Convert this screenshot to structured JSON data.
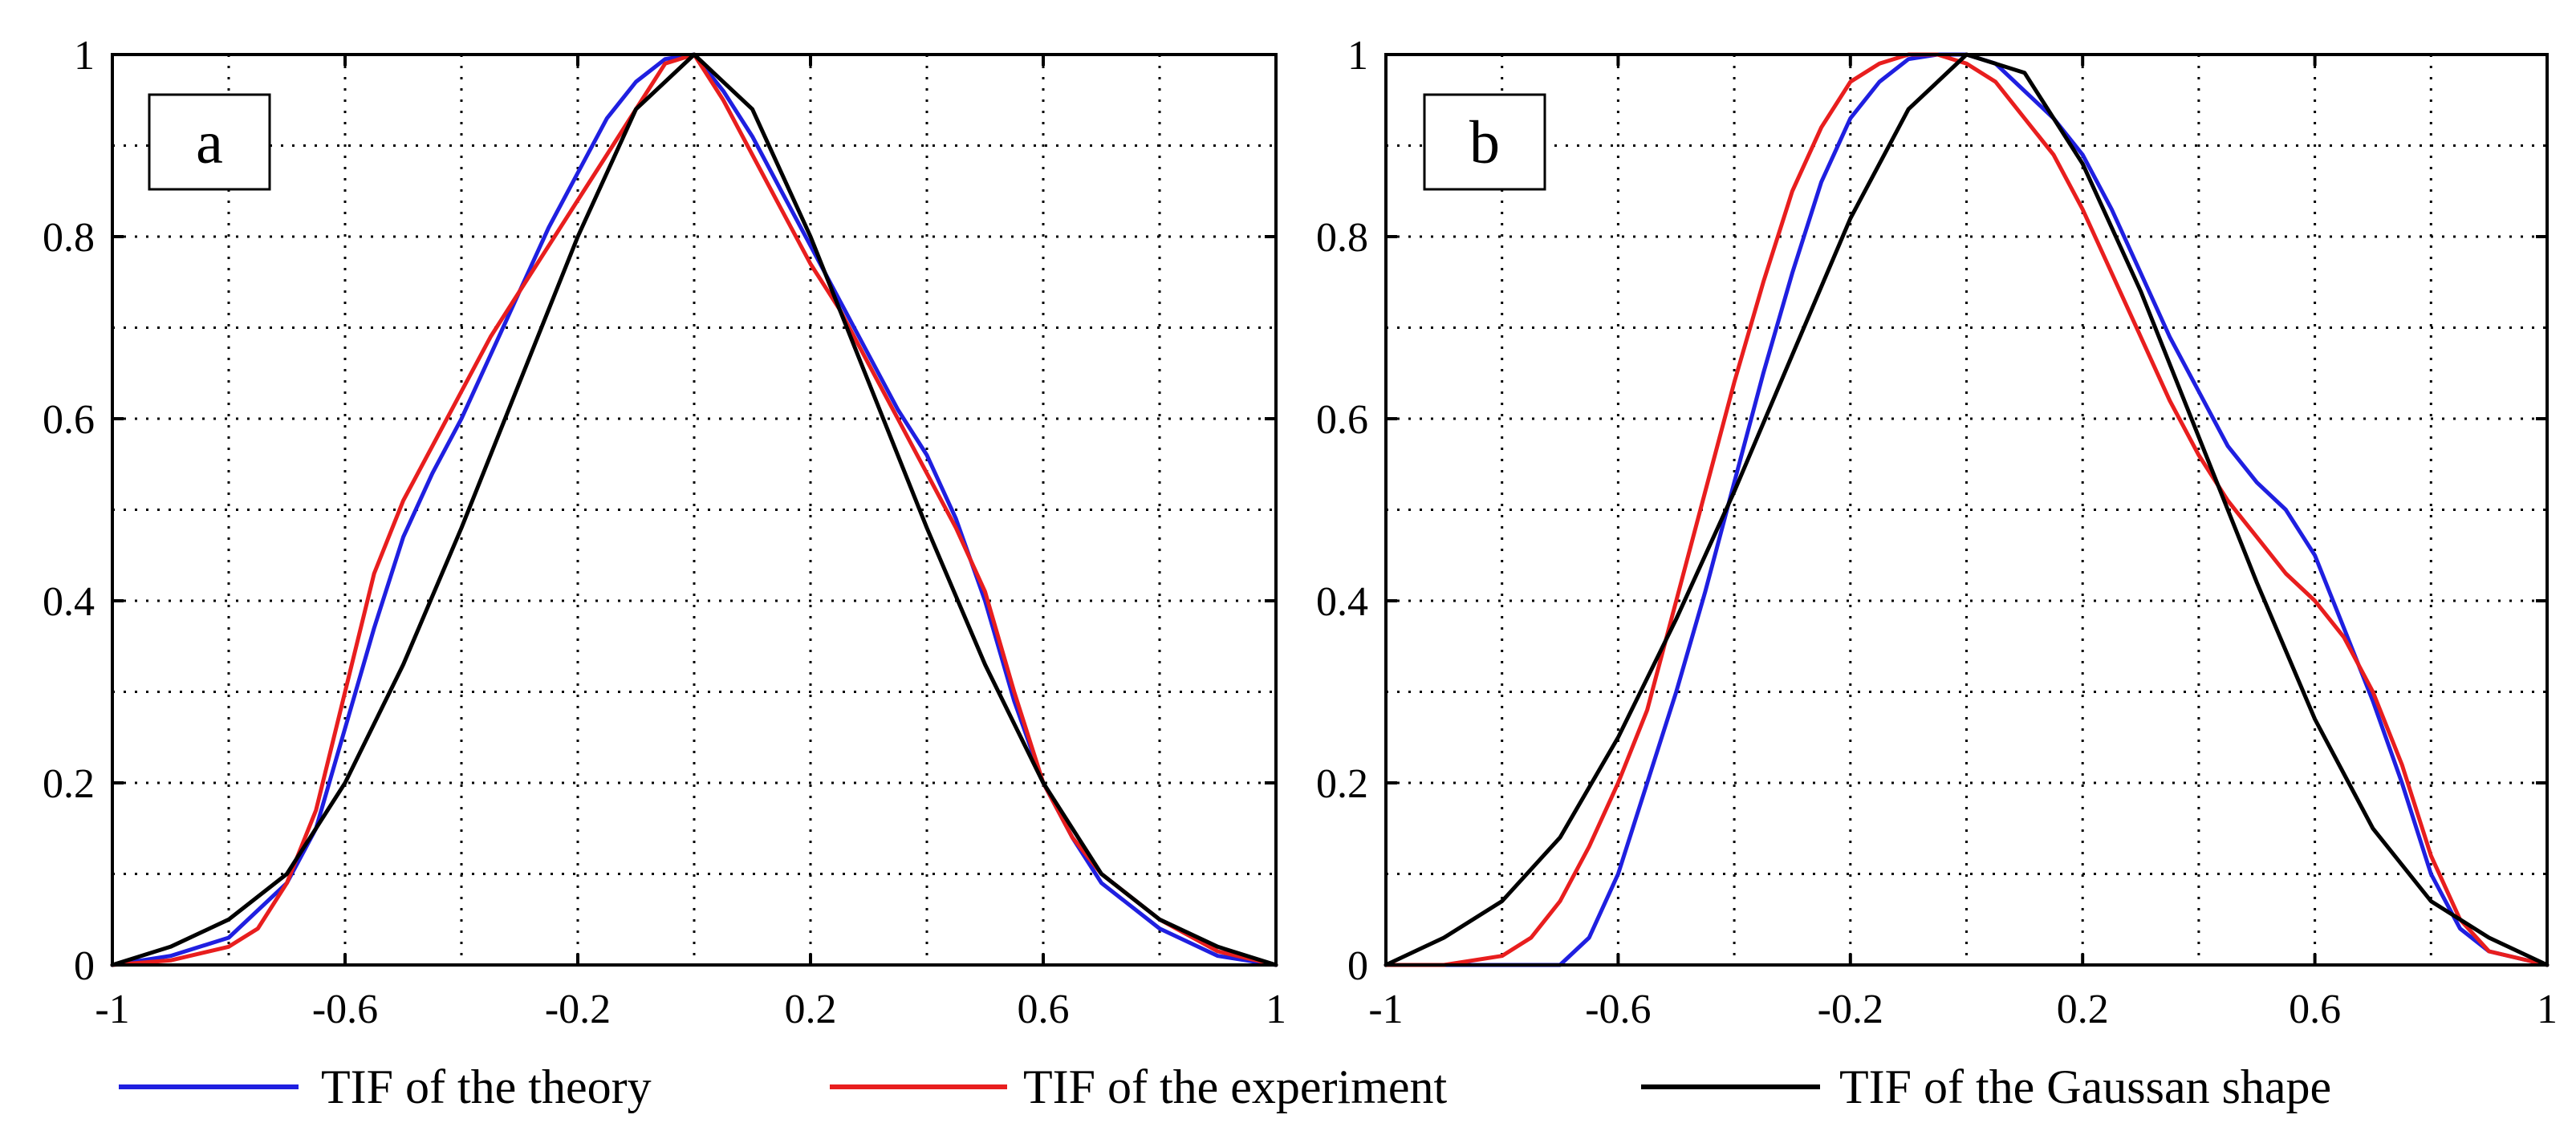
{
  "chart_data": [
    {
      "panel": "a",
      "type": "line",
      "xlim": [
        -1,
        1
      ],
      "ylim": [
        0,
        1
      ],
      "x_ticks": [
        -1,
        -0.6,
        -0.2,
        0.2,
        0.6,
        1
      ],
      "x_tick_labels": [
        "-1",
        "-0.6",
        "-0.2",
        "0.2",
        "0.6",
        "1"
      ],
      "y_ticks": [
        0,
        0.2,
        0.4,
        0.6,
        0.8,
        1
      ],
      "y_tick_labels": [
        "0",
        "0.2",
        "0.4",
        "0.6",
        "0.8",
        "1"
      ],
      "grid": true,
      "series": [
        {
          "name": "TIF of the theory",
          "color": "#1f1fe0",
          "x": [
            -1,
            -0.9,
            -0.8,
            -0.7,
            -0.65,
            -0.6,
            -0.55,
            -0.5,
            -0.45,
            -0.4,
            -0.35,
            -0.3,
            -0.25,
            -0.2,
            -0.15,
            -0.1,
            -0.05,
            0,
            0.05,
            0.1,
            0.15,
            0.2,
            0.25,
            0.3,
            0.35,
            0.4,
            0.45,
            0.5,
            0.55,
            0.6,
            0.65,
            0.7,
            0.8,
            0.9,
            1
          ],
          "y": [
            0,
            0.01,
            0.03,
            0.09,
            0.15,
            0.26,
            0.37,
            0.47,
            0.54,
            0.6,
            0.67,
            0.74,
            0.81,
            0.87,
            0.93,
            0.97,
            0.995,
            1,
            0.96,
            0.91,
            0.85,
            0.79,
            0.73,
            0.67,
            0.61,
            0.56,
            0.49,
            0.4,
            0.29,
            0.2,
            0.14,
            0.09,
            0.04,
            0.01,
            0
          ]
        },
        {
          "name": "TIF of the experiment",
          "color": "#e81e1e",
          "x": [
            -1,
            -0.9,
            -0.8,
            -0.75,
            -0.7,
            -0.65,
            -0.6,
            -0.55,
            -0.5,
            -0.45,
            -0.4,
            -0.35,
            -0.3,
            -0.25,
            -0.2,
            -0.15,
            -0.1,
            -0.05,
            0,
            0.05,
            0.1,
            0.15,
            0.2,
            0.25,
            0.3,
            0.35,
            0.4,
            0.45,
            0.5,
            0.55,
            0.6,
            0.65,
            0.7,
            0.8,
            0.9,
            1
          ],
          "y": [
            0,
            0.005,
            0.02,
            0.04,
            0.09,
            0.17,
            0.3,
            0.43,
            0.51,
            0.57,
            0.63,
            0.69,
            0.74,
            0.79,
            0.84,
            0.89,
            0.94,
            0.99,
            1,
            0.95,
            0.89,
            0.83,
            0.77,
            0.72,
            0.66,
            0.6,
            0.54,
            0.48,
            0.41,
            0.3,
            0.2,
            0.14,
            0.1,
            0.05,
            0.015,
            0
          ]
        },
        {
          "name": "TIF of the Gaussan shape",
          "color": "#000000",
          "x": [
            -1,
            -0.9,
            -0.8,
            -0.7,
            -0.6,
            -0.5,
            -0.4,
            -0.3,
            -0.2,
            -0.1,
            0,
            0.1,
            0.2,
            0.3,
            0.4,
            0.5,
            0.6,
            0.7,
            0.8,
            0.9,
            1
          ],
          "y": [
            0,
            0.02,
            0.05,
            0.1,
            0.2,
            0.33,
            0.48,
            0.64,
            0.8,
            0.94,
            1,
            0.94,
            0.8,
            0.64,
            0.48,
            0.33,
            0.2,
            0.1,
            0.05,
            0.02,
            0
          ]
        }
      ]
    },
    {
      "panel": "b",
      "type": "line",
      "xlim": [
        -1,
        1
      ],
      "ylim": [
        0,
        1
      ],
      "x_ticks": [
        -1,
        -0.6,
        -0.2,
        0.2,
        0.6,
        1
      ],
      "x_tick_labels": [
        "-1",
        "-0.6",
        "-0.2",
        "0.2",
        "0.6",
        "1"
      ],
      "y_ticks": [
        0,
        0.2,
        0.4,
        0.6,
        0.8,
        1
      ],
      "y_tick_labels": [
        "0",
        "0.2",
        "0.4",
        "0.6",
        "0.8",
        "1"
      ],
      "grid": true,
      "series": [
        {
          "name": "TIF of the theory",
          "color": "#1f1fe0",
          "x": [
            -1,
            -0.8,
            -0.7,
            -0.65,
            -0.6,
            -0.55,
            -0.5,
            -0.45,
            -0.4,
            -0.35,
            -0.3,
            -0.25,
            -0.2,
            -0.15,
            -0.1,
            -0.05,
            0,
            0.05,
            0.1,
            0.15,
            0.2,
            0.25,
            0.3,
            0.35,
            0.4,
            0.45,
            0.5,
            0.55,
            0.6,
            0.65,
            0.7,
            0.75,
            0.8,
            0.85,
            0.9,
            1
          ],
          "y": [
            0,
            0,
            0,
            0.03,
            0.1,
            0.2,
            0.3,
            0.41,
            0.53,
            0.65,
            0.76,
            0.86,
            0.93,
            0.97,
            0.995,
            1,
            1,
            0.99,
            0.96,
            0.93,
            0.89,
            0.83,
            0.76,
            0.69,
            0.63,
            0.57,
            0.53,
            0.5,
            0.45,
            0.37,
            0.29,
            0.2,
            0.1,
            0.04,
            0.015,
            0
          ]
        },
        {
          "name": "TIF of the experiment",
          "color": "#e81e1e",
          "x": [
            -1,
            -0.9,
            -0.8,
            -0.75,
            -0.7,
            -0.65,
            -0.6,
            -0.55,
            -0.5,
            -0.45,
            -0.4,
            -0.35,
            -0.3,
            -0.25,
            -0.2,
            -0.15,
            -0.1,
            -0.05,
            0,
            0.05,
            0.1,
            0.15,
            0.2,
            0.25,
            0.3,
            0.35,
            0.4,
            0.45,
            0.5,
            0.55,
            0.6,
            0.65,
            0.7,
            0.75,
            0.8,
            0.85,
            0.9,
            1
          ],
          "y": [
            0,
            0,
            0.01,
            0.03,
            0.07,
            0.13,
            0.2,
            0.28,
            0.4,
            0.52,
            0.64,
            0.75,
            0.85,
            0.92,
            0.97,
            0.99,
            1,
            1,
            0.99,
            0.97,
            0.93,
            0.89,
            0.83,
            0.76,
            0.69,
            0.62,
            0.56,
            0.51,
            0.47,
            0.43,
            0.4,
            0.36,
            0.3,
            0.22,
            0.12,
            0.05,
            0.015,
            0
          ]
        },
        {
          "name": "TIF of the Gaussan shape",
          "color": "#000000",
          "x": [
            -1,
            -0.9,
            -0.8,
            -0.7,
            -0.6,
            -0.5,
            -0.4,
            -0.3,
            -0.2,
            -0.1,
            0,
            0.1,
            0.2,
            0.3,
            0.4,
            0.5,
            0.6,
            0.7,
            0.8,
            0.9,
            1
          ],
          "y": [
            0,
            0.03,
            0.07,
            0.14,
            0.25,
            0.38,
            0.52,
            0.67,
            0.82,
            0.94,
            1,
            0.98,
            0.88,
            0.74,
            0.58,
            0.42,
            0.27,
            0.15,
            0.07,
            0.03,
            0
          ]
        }
      ]
    }
  ],
  "legend": [
    {
      "label": "TIF of the theory",
      "color": "#1f1fe0"
    },
    {
      "label": "TIF of the experiment",
      "color": "#e81e1e"
    },
    {
      "label": "TIF of the Gaussan shape",
      "color": "#000000"
    }
  ]
}
